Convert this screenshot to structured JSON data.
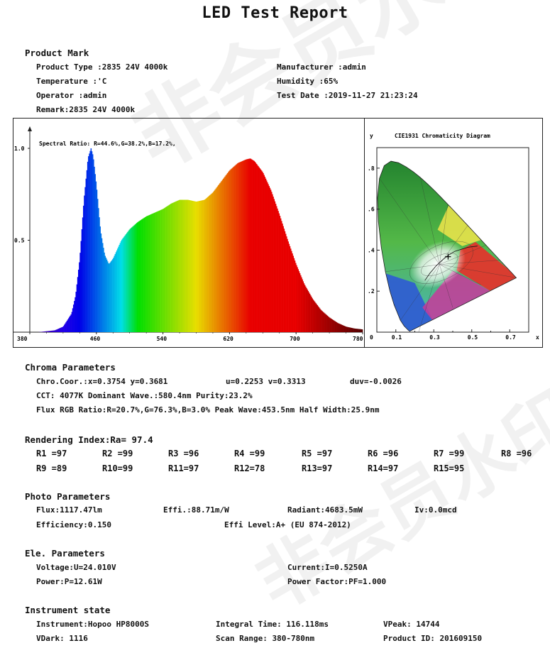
{
  "title": "LED Test Report",
  "watermark": "非会员水印",
  "product": {
    "header": "Product Mark",
    "product_type": "Product Type :2835 24V 4000k",
    "manufacturer": "Manufacturer :admin",
    "temperature": "Temperature :'C",
    "humidity": "Humidity :65%",
    "operator": "Operator :admin",
    "test_date": "Test Date :2019-11-27 21:23:24",
    "remark": "Remark:2835 24V 4000k"
  },
  "chart_data": [
    {
      "type": "area",
      "title": "Spectral Ratio:  R=44.6%,G=38.2%,B=17.2%,",
      "xlim": [
        380,
        780
      ],
      "ylim": [
        0,
        1.0
      ],
      "x_ticks": [
        "380",
        "460",
        "540",
        "620",
        "700",
        "780"
      ],
      "y_ticks": [
        "1.0",
        "0.5"
      ],
      "x": [
        380,
        390,
        400,
        410,
        420,
        430,
        435,
        440,
        445,
        450,
        453.5,
        456,
        460,
        465,
        470,
        475,
        480,
        485,
        490,
        500,
        510,
        520,
        530,
        540,
        550,
        560,
        570,
        580,
        590,
        600,
        610,
        620,
        630,
        640,
        645,
        650,
        660,
        670,
        680,
        690,
        700,
        710,
        720,
        730,
        740,
        750,
        760,
        770,
        780
      ],
      "values": [
        0,
        0,
        0.005,
        0.01,
        0.03,
        0.1,
        0.2,
        0.4,
        0.72,
        0.95,
        1.0,
        0.96,
        0.8,
        0.55,
        0.42,
        0.37,
        0.4,
        0.45,
        0.5,
        0.56,
        0.6,
        0.63,
        0.65,
        0.67,
        0.7,
        0.72,
        0.72,
        0.71,
        0.72,
        0.76,
        0.82,
        0.88,
        0.92,
        0.94,
        0.945,
        0.93,
        0.87,
        0.77,
        0.64,
        0.5,
        0.37,
        0.26,
        0.18,
        0.12,
        0.08,
        0.05,
        0.03,
        0.02,
        0.015
      ]
    },
    {
      "type": "scatter",
      "title": "CIE1931 Chromaticity Diagram",
      "ylabel": "y",
      "xlabel": "x",
      "xlim": [
        0,
        0.8
      ],
      "ylim": [
        0,
        0.9
      ],
      "x_ticks": [
        "0",
        "0.1",
        "0.3",
        "0.5",
        "0.7"
      ],
      "y_ticks": [
        ".8",
        ".6",
        ".4",
        ".2"
      ],
      "point": {
        "x": 0.3754,
        "y": 0.3681
      }
    }
  ],
  "chroma": {
    "header": "Chroma Parameters",
    "line1_a": "Chro.Coor.:x=0.3754  y=0.3681",
    "line1_b": "u=0.2253  v=0.3313",
    "line1_c": "duv=-0.0026",
    "line2": "CCT: 4077K   Dominant Wave.:580.4nm   Purity:23.2%",
    "line3": "Flux RGB Ratio:R=20.7%,G=76.3%,B=3.0%   Peak Wave:453.5nm   Half Width:25.9nm"
  },
  "rendering": {
    "header": "Rendering Index:Ra= 97.4",
    "row1": [
      "R1 =97",
      "R2 =99",
      "R3 =96",
      "R4 =99",
      "R5 =97",
      "R6 =96",
      "R7 =99",
      "R8 =96"
    ],
    "row2": [
      "R9 =89",
      "R10=99",
      "R11=97",
      "R12=78",
      "R13=97",
      "R14=97",
      "R15=95"
    ]
  },
  "photo": {
    "header": "Photo Parameters",
    "flux": "Flux:1117.47lm",
    "effi": "Effi.:88.71m/W",
    "radiant": "Radiant:4683.5mW",
    "iv": "Iv:0.0mcd",
    "efficiency": "Efficiency:0.150",
    "effi_level": "Effi Level:A+ (EU 874-2012)"
  },
  "ele": {
    "header": "Ele. Parameters",
    "voltage": "Voltage:U=24.010V",
    "current": "Current:I=0.5250A",
    "power": "Power:P=12.61W",
    "pf": "Power Factor:PF=1.000"
  },
  "instrument": {
    "header": "Instrument state",
    "instrument": "Instrument:Hopoo HP8000S",
    "integral": "Integral Time: 116.118ms",
    "vpeak": "VPeak: 14744",
    "vdark": "VDark: 1116",
    "scan": "Scan Range: 380-780nm",
    "product_id": "Product ID: 201609150"
  }
}
